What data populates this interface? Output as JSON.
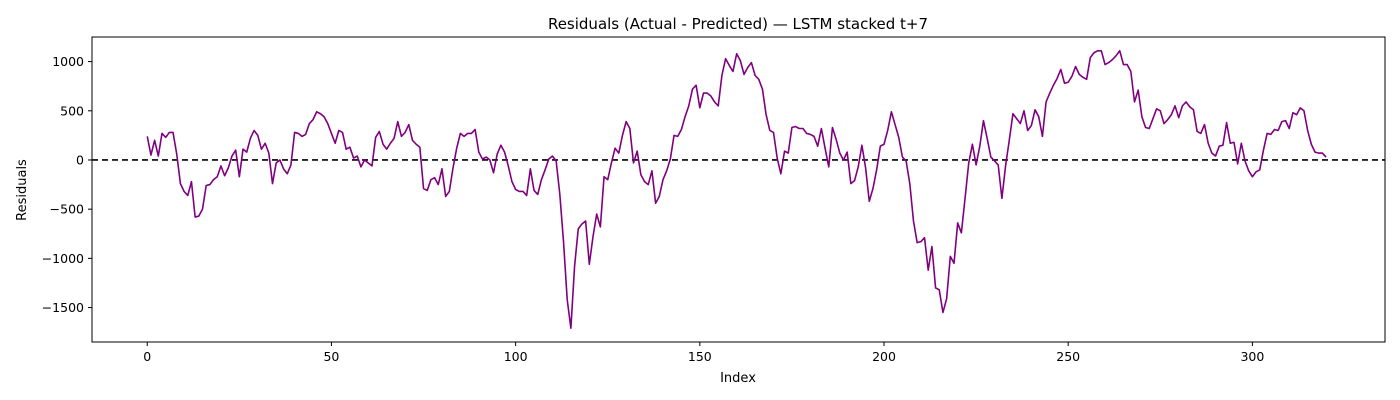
{
  "chart_data": {
    "type": "line",
    "title": "Residuals (Actual - Predicted) — LSTM stacked t+7",
    "xlabel": "Index",
    "ylabel": "Residuals",
    "xlim": [
      -15,
      336
    ],
    "ylim": [
      -1850,
      1250
    ],
    "x_ticks": [
      0,
      50,
      100,
      150,
      200,
      250,
      300
    ],
    "y_ticks": [
      -1500,
      -1000,
      -500,
      0,
      500,
      1000
    ],
    "grid": false,
    "legend": "none",
    "zero_line": {
      "y": 0,
      "style": "dashed",
      "color": "#000000"
    },
    "series": [
      {
        "color": "#800080",
        "x_start": 0,
        "values": [
          240,
          50,
          200,
          40,
          270,
          230,
          280,
          280,
          60,
          -240,
          -320,
          -360,
          -220,
          -580,
          -570,
          -500,
          -260,
          -250,
          -200,
          -170,
          -60,
          -160,
          -80,
          40,
          100,
          -170,
          110,
          80,
          220,
          300,
          250,
          110,
          170,
          70,
          -240,
          -30,
          0,
          -90,
          -140,
          -50,
          280,
          270,
          240,
          260,
          370,
          410,
          490,
          470,
          440,
          370,
          270,
          170,
          300,
          280,
          110,
          130,
          20,
          40,
          -70,
          0,
          -30,
          -60,
          230,
          290,
          160,
          110,
          170,
          220,
          390,
          240,
          280,
          360,
          200,
          160,
          130,
          -290,
          -310,
          -200,
          -180,
          -250,
          -90,
          -370,
          -320,
          -80,
          120,
          270,
          240,
          270,
          270,
          310,
          80,
          10,
          30,
          0,
          -130,
          60,
          150,
          80,
          -60,
          -220,
          -300,
          -320,
          -320,
          -360,
          -90,
          -310,
          -350,
          -200,
          -100,
          10,
          40,
          -10,
          -350,
          -830,
          -1420,
          -1710,
          -1080,
          -700,
          -650,
          -620,
          -1060,
          -780,
          -550,
          -680,
          -170,
          -200,
          -30,
          120,
          70,
          250,
          390,
          320,
          -30,
          90,
          -150,
          -220,
          -250,
          -110,
          -440,
          -370,
          -200,
          -110,
          10,
          250,
          240,
          310,
          440,
          550,
          720,
          760,
          530,
          680,
          680,
          650,
          590,
          550,
          860,
          1030,
          960,
          900,
          1080,
          1010,
          870,
          940,
          990,
          860,
          820,
          720,
          460,
          300,
          280,
          20,
          -140,
          90,
          70,
          330,
          340,
          320,
          320,
          270,
          260,
          240,
          140,
          320,
          120,
          -70,
          330,
          210,
          70,
          0,
          80,
          -240,
          -210,
          -70,
          150,
          -80,
          -420,
          -290,
          -100,
          140,
          160,
          300,
          490,
          360,
          230,
          30,
          -10,
          -240,
          -620,
          -840,
          -830,
          -790,
          -1120,
          -880,
          -1300,
          -1320,
          -1550,
          -1410,
          -980,
          -1050,
          -640,
          -740,
          -390,
          -30,
          160,
          -50,
          140,
          400,
          220,
          30,
          -10,
          -50,
          -390,
          -60,
          200,
          470,
          420,
          370,
          500,
          300,
          350,
          510,
          440,
          240,
          590,
          680,
          760,
          830,
          920,
          780,
          790,
          850,
          950,
          870,
          840,
          820,
          1040,
          1090,
          1110,
          1110,
          970,
          990,
          1020,
          1060,
          1110,
          970,
          970,
          900,
          590,
          710,
          440,
          330,
          320,
          420,
          520,
          500,
          370,
          410,
          460,
          550,
          430,
          550,
          590,
          540,
          510,
          290,
          270,
          360,
          170,
          70,
          40,
          140,
          150,
          380,
          170,
          180,
          -40,
          170,
          -10,
          -110,
          -170,
          -120,
          -100,
          100,
          270,
          260,
          310,
          300,
          390,
          400,
          320,
          480,
          460,
          530,
          500,
          300,
          160,
          80,
          70,
          70,
          30
        ]
      }
    ]
  }
}
